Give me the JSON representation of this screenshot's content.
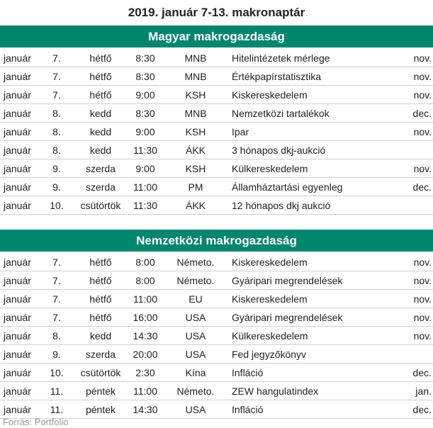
{
  "title": "2019. január 7-13. makronaptár",
  "sections": [
    {
      "heading": "Magyar makrogazdaság",
      "rows": [
        {
          "month": "január",
          "day": "7.",
          "weekday": "hétfő",
          "time": "8:30",
          "source": "MNB",
          "event": "Hitelintézetek mérlege",
          "period": "nov."
        },
        {
          "month": "január",
          "day": "7.",
          "weekday": "hétfő",
          "time": "8:30",
          "source": "MNB",
          "event": "Értékpapírstatisztika",
          "period": "nov."
        },
        {
          "month": "január",
          "day": "7.",
          "weekday": "hétfő",
          "time": "9:00",
          "source": "KSH",
          "event": "Kiskereskedelem",
          "period": "nov."
        },
        {
          "month": "január",
          "day": "8.",
          "weekday": "kedd",
          "time": "8:30",
          "source": "MNB",
          "event": "Nemzetközi tartalékok",
          "period": "dec."
        },
        {
          "month": "január",
          "day": "8.",
          "weekday": "kedd",
          "time": "9:00",
          "source": "KSH",
          "event": "Ipar",
          "period": "nov."
        },
        {
          "month": "január",
          "day": "8.",
          "weekday": "kedd",
          "time": "11:30",
          "source": "ÁKK",
          "event": "3 hónapos dkj-aukció",
          "period": ""
        },
        {
          "month": "január",
          "day": "9.",
          "weekday": "szerda",
          "time": "9:00",
          "source": "KSH",
          "event": "Külkereskedelem",
          "period": "nov."
        },
        {
          "month": "január",
          "day": "9.",
          "weekday": "szerda",
          "time": "11:00",
          "source": "PM",
          "event": "Államháztartási egyenleg",
          "period": "dec."
        },
        {
          "month": "január",
          "day": "10.",
          "weekday": "csütörtök",
          "time": "11:30",
          "source": "ÁKK",
          "event": "12 hónapos dkj aukció",
          "period": ""
        }
      ]
    },
    {
      "heading": "Nemzetközi makrogazdaság",
      "rows": [
        {
          "month": "január",
          "day": "7.",
          "weekday": "hétfő",
          "time": "8:00",
          "source": "Németo.",
          "event": "Kiskereskedelem",
          "period": "nov."
        },
        {
          "month": "január",
          "day": "7.",
          "weekday": "hétfő",
          "time": "8:00",
          "source": "Németo.",
          "event": "Gyáripari megrendelések",
          "period": "nov."
        },
        {
          "month": "január",
          "day": "7.",
          "weekday": "hétfő",
          "time": "11:00",
          "source": "EU",
          "event": "Kiskereskedelem",
          "period": "nov."
        },
        {
          "month": "január",
          "day": "7.",
          "weekday": "hétfő",
          "time": "16:00",
          "source": "USA",
          "event": "Gyáripari megrendelések",
          "period": "nov."
        },
        {
          "month": "január",
          "day": "8.",
          "weekday": "kedd",
          "time": "14:30",
          "source": "USA",
          "event": "Külkereskedelem",
          "period": "nov."
        },
        {
          "month": "január",
          "day": "9.",
          "weekday": "szerda",
          "time": "20:00",
          "source": "USA",
          "event": "Fed jegyzőkönyv",
          "period": ""
        },
        {
          "month": "január",
          "day": "10.",
          "weekday": "csütörtök",
          "time": "2:30",
          "source": "Kína",
          "event": "Infláció",
          "period": "dec."
        },
        {
          "month": "január",
          "day": "11.",
          "weekday": "péntek",
          "time": "11:00",
          "source": "Németo.",
          "event": "ZEW hangulatindex",
          "period": "jan."
        },
        {
          "month": "január",
          "day": "11.",
          "weekday": "péntek",
          "time": "14:30",
          "source": "USA",
          "event": "Infláció",
          "period": "dec."
        }
      ]
    }
  ],
  "footer": "Forrás: Portfolio"
}
